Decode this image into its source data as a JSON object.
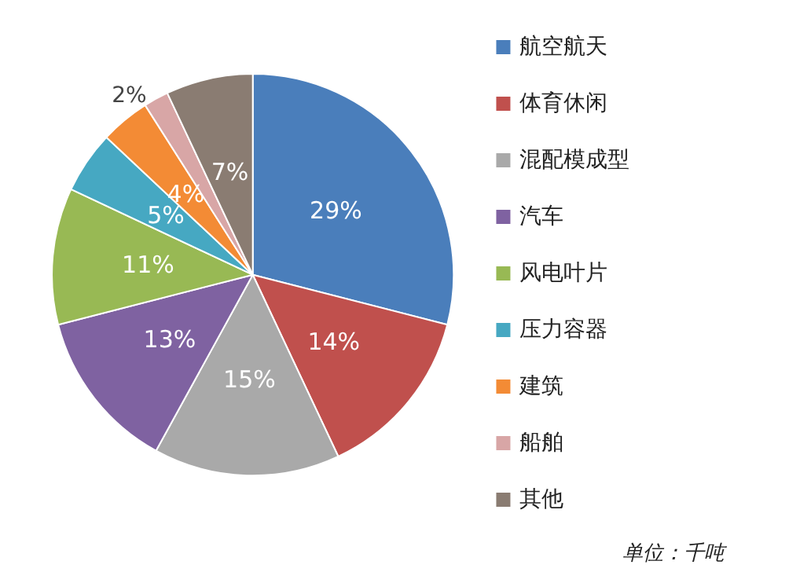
{
  "chart_data": {
    "type": "pie",
    "categories": [
      "航空航天",
      "体育休闲",
      "混配模成型",
      "汽车",
      "风电叶片",
      "压力容器",
      "建筑",
      "船舶",
      "其他"
    ],
    "values": [
      29,
      14,
      15,
      13,
      11,
      5,
      4,
      2,
      7
    ],
    "colors": [
      "#4a7ebb",
      "#c0504d",
      "#a9a9a9",
      "#7f62a1",
      "#98b954",
      "#46a8c2",
      "#f38b35",
      "#d8a6a6",
      "#8a7c72"
    ],
    "value_labels": [
      "29%",
      "14%",
      "15%",
      "13%",
      "11%",
      "5%",
      "4%",
      "2%",
      "7%"
    ],
    "legend": "right",
    "annotations": [
      "单位：千吨"
    ]
  }
}
